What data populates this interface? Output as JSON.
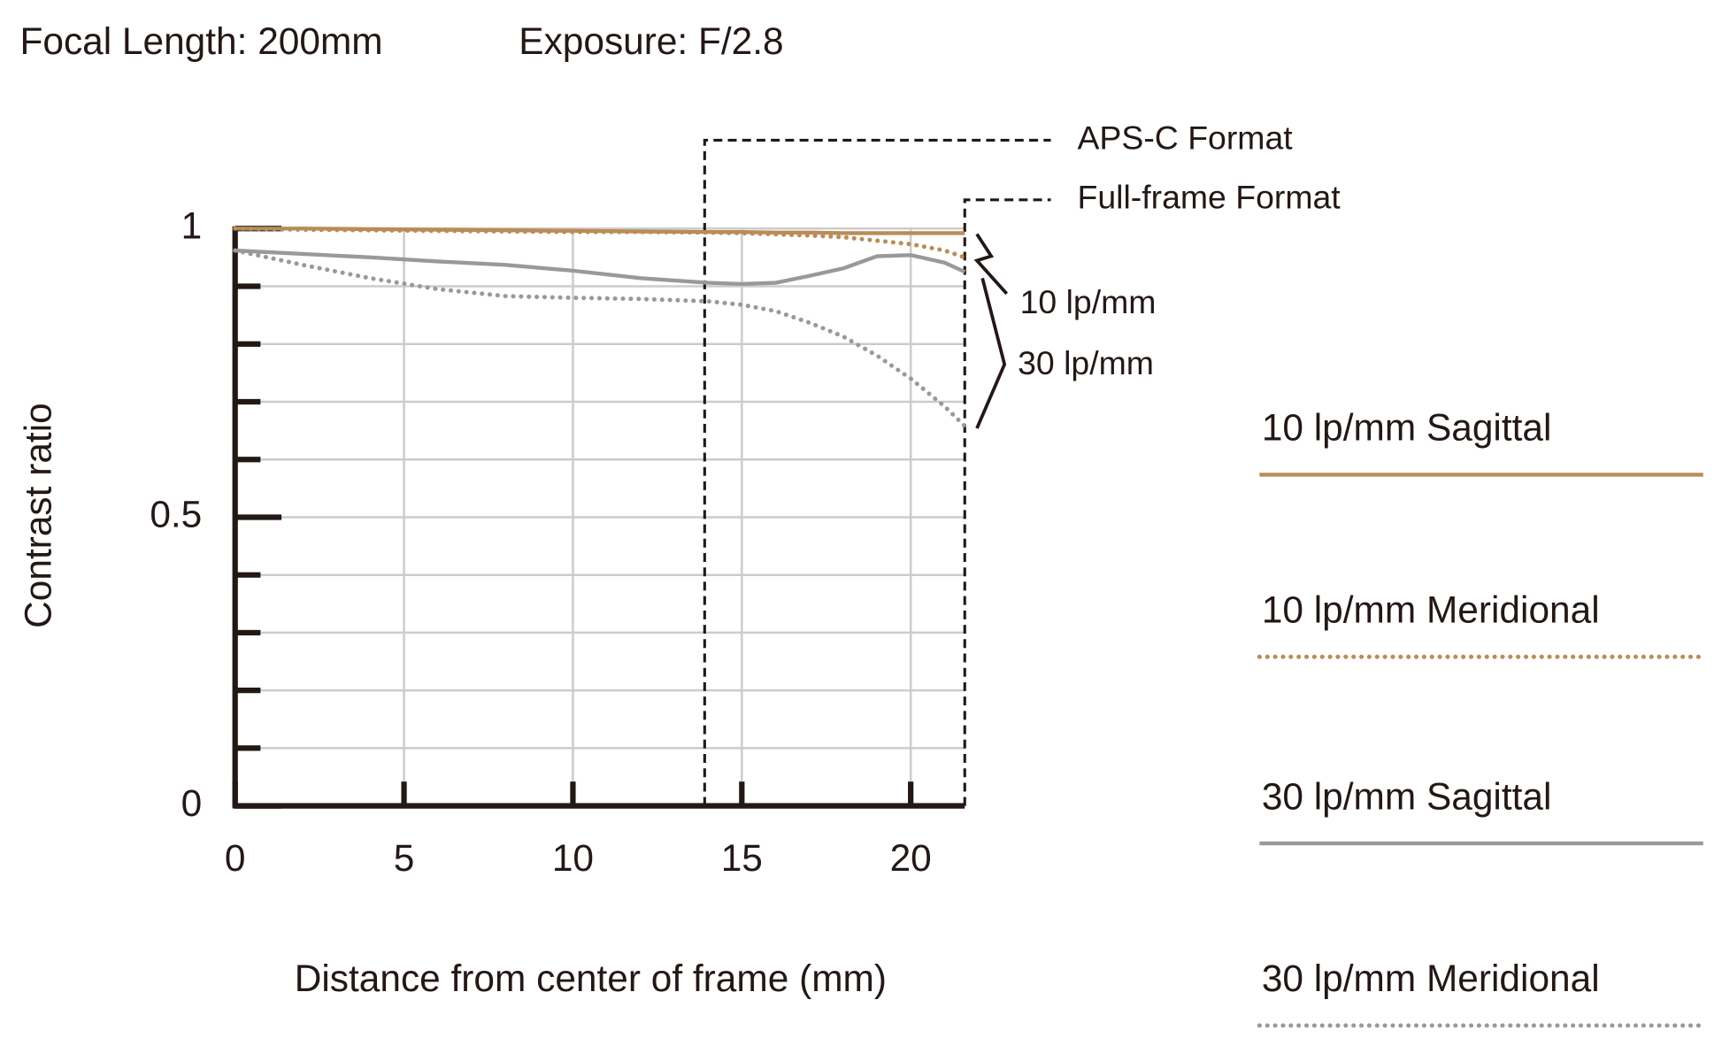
{
  "chart_data": {
    "type": "line",
    "title": "Focal Length: 200mm",
    "subtitle": "Exposure: F/2.8",
    "xlabel": "Distance from center of frame (mm)",
    "ylabel": "Contrast ratio",
    "x": [
      0,
      2,
      4,
      6,
      8,
      10,
      12,
      14,
      15,
      16,
      17,
      18,
      19,
      20,
      21,
      21.6
    ],
    "xlim": [
      0,
      21.6
    ],
    "xticks": [
      0,
      5,
      10,
      15,
      20
    ],
    "ylim": [
      0,
      1
    ],
    "yticks": [
      0,
      0.5,
      1
    ],
    "yminor": [
      0.1,
      0.2,
      0.3,
      0.4,
      0.6,
      0.7,
      0.8,
      0.9
    ],
    "grid": true,
    "series": [
      {
        "name": "10 lp/mm Sagittal",
        "color": "#b98c58",
        "style": "solid",
        "values": [
          1.0,
          1.0,
          0.999,
          0.998,
          0.997,
          0.996,
          0.995,
          0.994,
          0.994,
          0.993,
          0.993,
          0.992,
          0.992,
          0.992,
          0.992,
          0.992
        ]
      },
      {
        "name": "10 lp/mm Meridional",
        "color": "#b98c58",
        "style": "dotted",
        "values": [
          1.0,
          0.998,
          0.997,
          0.996,
          0.995,
          0.994,
          0.994,
          0.993,
          0.992,
          0.99,
          0.988,
          0.985,
          0.979,
          0.973,
          0.962,
          0.95
        ]
      },
      {
        "name": "30 lp/mm Sagittal",
        "color": "#999999",
        "style": "solid",
        "values": [
          0.962,
          0.956,
          0.95,
          0.943,
          0.937,
          0.927,
          0.914,
          0.906,
          0.904,
          0.906,
          0.918,
          0.931,
          0.952,
          0.954,
          0.941,
          0.925
        ]
      },
      {
        "name": "30 lp/mm Meridional",
        "color": "#999999",
        "style": "dotted",
        "values": [
          0.962,
          0.937,
          0.914,
          0.895,
          0.883,
          0.88,
          0.878,
          0.874,
          0.868,
          0.857,
          0.837,
          0.813,
          0.78,
          0.74,
          0.692,
          0.658
        ]
      }
    ],
    "format_lines": [
      {
        "label": "APS-C Format",
        "x": 13.9
      },
      {
        "label": "Full-frame Format",
        "x": 21.6
      }
    ],
    "annotations": [
      "10 lp/mm",
      "30 lp/mm"
    ]
  }
}
